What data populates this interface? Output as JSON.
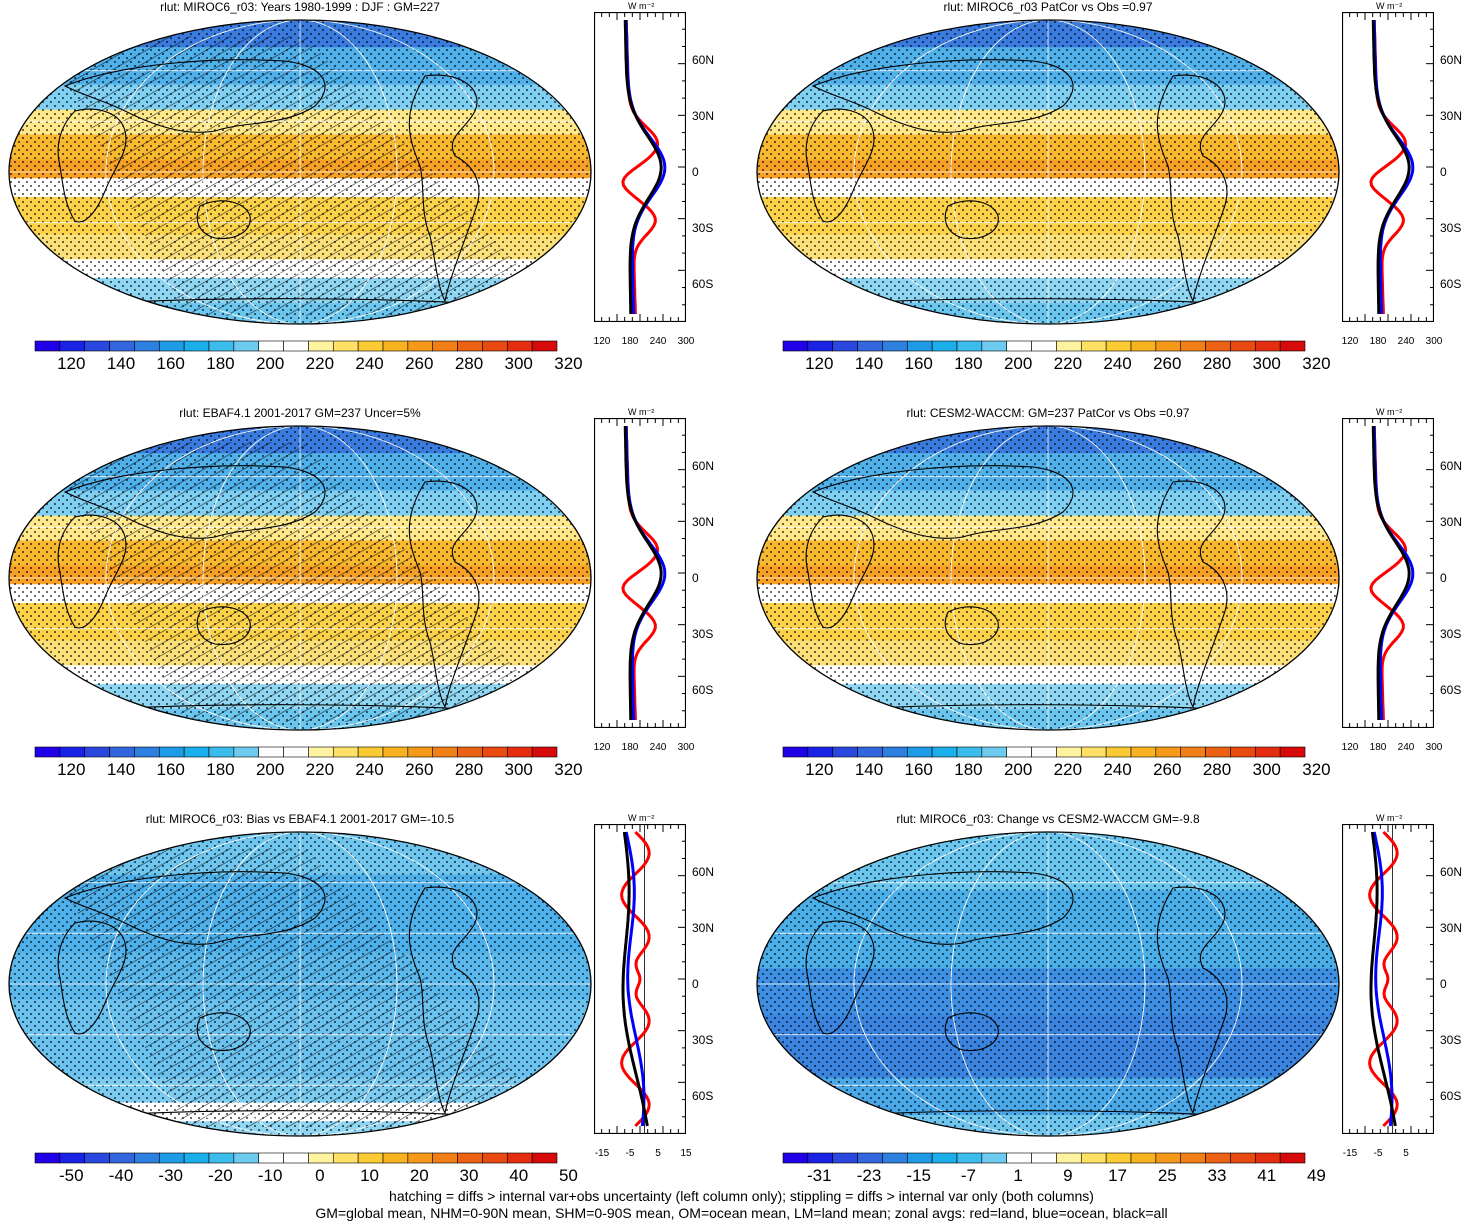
{
  "panels": [
    {
      "id": "p1",
      "title": "rlut: MIROC6_r03: Years 1980-1999 : DJF : GM=227",
      "colorbar_ticks": [
        "120",
        "140",
        "160",
        "180",
        "200",
        "220",
        "240",
        "260",
        "280",
        "300",
        "320"
      ],
      "colorbar_palette": "full",
      "zonal_unit": "W m⁻²",
      "zonal_xticks": [
        "120",
        "180",
        "240",
        "300"
      ],
      "zonal_yticks": [
        "60N",
        "30N",
        "0",
        "30S",
        "60S"
      ],
      "hatched": true,
      "map_kind": "mean"
    },
    {
      "id": "p2",
      "title": "rlut: MIROC6_r03 PatCor vs Obs =0.97",
      "colorbar_ticks": [
        "120",
        "140",
        "160",
        "180",
        "200",
        "220",
        "240",
        "260",
        "280",
        "300",
        "320"
      ],
      "colorbar_palette": "full",
      "zonal_unit": "W m⁻²",
      "zonal_xticks": [
        "120",
        "180",
        "240",
        "300"
      ],
      "zonal_yticks": [
        "60N",
        "30N",
        "0",
        "30S",
        "60S"
      ],
      "hatched": false,
      "map_kind": "mean"
    },
    {
      "id": "p3",
      "title": "rlut: EBAF4.1 2001-2017 GM=237 Uncer=5%",
      "colorbar_ticks": [
        "120",
        "140",
        "160",
        "180",
        "200",
        "220",
        "240",
        "260",
        "280",
        "300",
        "320"
      ],
      "colorbar_palette": "full",
      "zonal_unit": "W m⁻²",
      "zonal_xticks": [
        "120",
        "180",
        "240",
        "300"
      ],
      "zonal_yticks": [
        "60N",
        "30N",
        "0",
        "30S",
        "60S"
      ],
      "hatched": true,
      "map_kind": "mean"
    },
    {
      "id": "p4",
      "title": "rlut: CESM2-WACCM: GM=237 PatCor vs Obs =0.97",
      "colorbar_ticks": [
        "120",
        "140",
        "160",
        "180",
        "200",
        "220",
        "240",
        "260",
        "280",
        "300",
        "320"
      ],
      "colorbar_palette": "full",
      "zonal_unit": "W m⁻²",
      "zonal_xticks": [
        "120",
        "180",
        "240",
        "300"
      ],
      "zonal_yticks": [
        "60N",
        "30N",
        "0",
        "30S",
        "60S"
      ],
      "hatched": false,
      "map_kind": "mean"
    },
    {
      "id": "p5",
      "title": "rlut: MIROC6_r03: Bias vs EBAF4.1 2001-2017 GM=-10.5",
      "colorbar_ticks": [
        "-50",
        "-40",
        "-30",
        "-20",
        "-10",
        "0",
        "10",
        "20",
        "30",
        "40",
        "50"
      ],
      "colorbar_palette": "full",
      "zonal_unit": "W m⁻²",
      "zonal_xticks": [
        "-15",
        "-5",
        "5",
        "15"
      ],
      "zonal_yticks": [
        "60N",
        "30N",
        "0",
        "30S",
        "60S"
      ],
      "hatched": true,
      "map_kind": "bias"
    },
    {
      "id": "p6",
      "title": "rlut: MIROC6_r03: Change vs CESM2-WACCM GM=-9.8",
      "colorbar_ticks": [
        "-31",
        "-23",
        "-15",
        "-7",
        "1",
        "9",
        "17",
        "25",
        "33",
        "41",
        "49"
      ],
      "colorbar_palette": "full",
      "zonal_unit": "W m⁻²",
      "zonal_xticks": [
        "-15",
        "-5",
        "5"
      ],
      "zonal_yticks": [
        "60N",
        "30N",
        "0",
        "30S",
        "60S"
      ],
      "hatched": false,
      "map_kind": "change"
    }
  ],
  "palette": [
    "#1f00e8",
    "#1a22e6",
    "#2a47e0",
    "#3366dd",
    "#2e80e0",
    "#1e9ae6",
    "#1aaeea",
    "#3bbcec",
    "#6ccbef",
    "#ffffff",
    "#ffffff",
    "#fff3a0",
    "#ffe066",
    "#fbcb33",
    "#f7b21f",
    "#f4991a",
    "#f07f16",
    "#eb6214",
    "#e84a12",
    "#e52e10",
    "#d60a0a"
  ],
  "footer": {
    "line1": "hatching = diffs > internal var+obs uncertainty (left column only); stippling = diffs > internal var only (both columns)",
    "line2": "GM=global mean, NHM=0-90N mean, SHM=0-90S mean, OM=ocean mean, LM=land mean; zonal avgs: red=land, blue=ocean, black=all"
  }
}
